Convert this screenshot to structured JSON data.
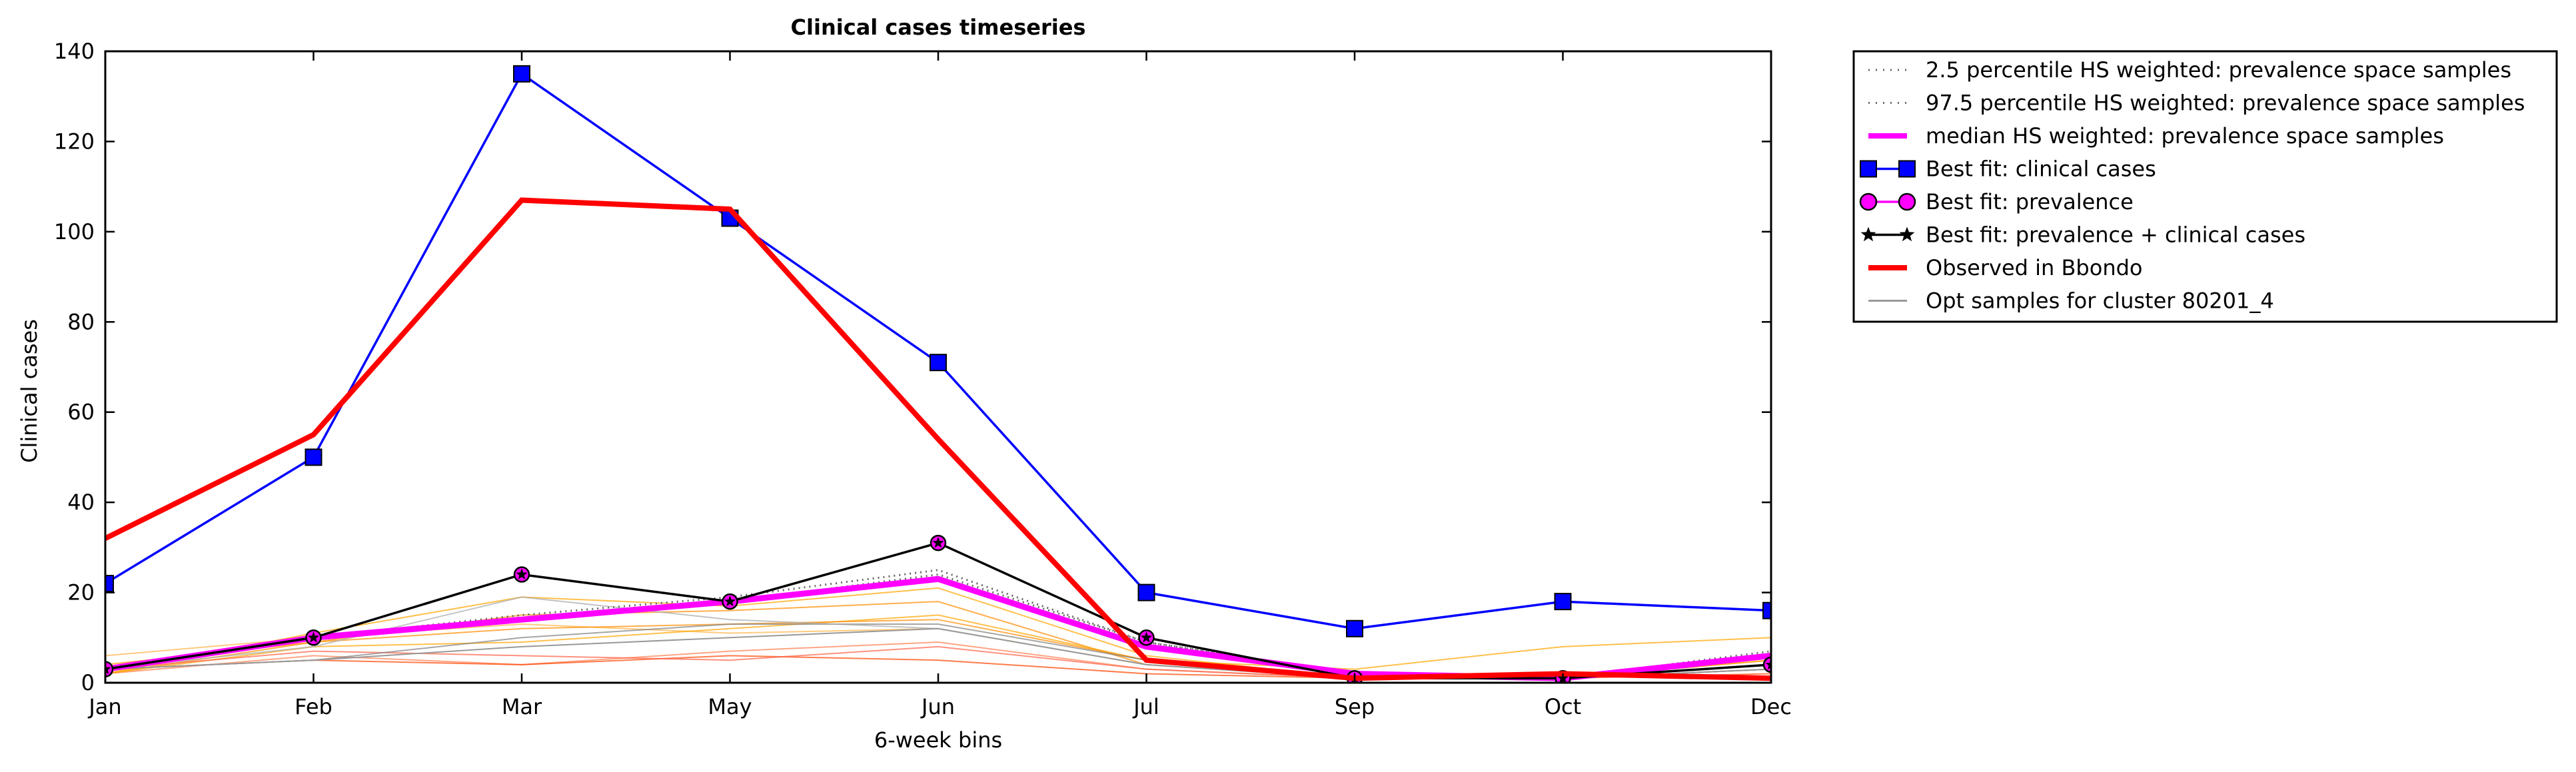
{
  "chart_data": {
    "type": "line",
    "title": "Clinical cases timeseries",
    "xlabel": "6-week bins",
    "ylabel": "Clinical cases",
    "categories": [
      "Jan",
      "Feb",
      "Mar",
      "May",
      "Jun",
      "Jul",
      "Sep",
      "Oct",
      "Dec"
    ],
    "ylim": [
      0,
      140
    ],
    "yticks": [
      0,
      20,
      40,
      60,
      80,
      100,
      120,
      140
    ],
    "grid": false,
    "legend_position": "outside-right",
    "colors": {
      "best_fit_clinical": "#0000ff",
      "best_fit_prevalence_fill": "#ff00ff",
      "best_fit_both": "#000000",
      "observed": "#ff0000",
      "median": "#ff00ff",
      "percentile": "#666666",
      "opt_samples": "#999999"
    },
    "legend": [
      {
        "label": "2.5 percentile HS weighted: prevalence space samples",
        "style": "dotted"
      },
      {
        "label": "97.5 percentile HS weighted: prevalence space samples",
        "style": "dotted"
      },
      {
        "label": "median HS weighted: prevalence space samples",
        "style": "magenta-thick"
      },
      {
        "label": "Best fit: clinical cases",
        "style": "blue-square"
      },
      {
        "label": "Best fit: prevalence",
        "style": "magenta-circle"
      },
      {
        "label": "Best fit: prevalence + clinical cases",
        "style": "black-star"
      },
      {
        "label": "Observed in Bbondo",
        "style": "red-thick"
      },
      {
        "label": "Opt samples for cluster 80201_4",
        "style": "gray-thin"
      }
    ],
    "series": [
      {
        "name": "Best fit: clinical cases",
        "values": [
          22,
          50,
          135,
          103,
          71,
          20,
          12,
          18,
          16
        ]
      },
      {
        "name": "Observed in Bbondo",
        "values": [
          32,
          55,
          107,
          105,
          54,
          5,
          1,
          2,
          1
        ]
      },
      {
        "name": "Best fit: prevalence",
        "values": [
          3,
          10,
          24,
          18,
          31,
          10,
          1,
          1,
          4
        ]
      },
      {
        "name": "Best fit: prevalence + clinical cases",
        "values": [
          3,
          10,
          24,
          18,
          31,
          10,
          1,
          1,
          4
        ]
      },
      {
        "name": "median HS weighted: prevalence space samples",
        "values": [
          3,
          10,
          14,
          18,
          23,
          8,
          2,
          1,
          6
        ]
      },
      {
        "name": "2.5 percentile HS weighted: prevalence space samples",
        "values": [
          3,
          10,
          14,
          18,
          24,
          9,
          2,
          1,
          6
        ]
      },
      {
        "name": "97.5 percentile HS weighted: prevalence space samples",
        "values": [
          3,
          10,
          15,
          19,
          25,
          9,
          2,
          1,
          7
        ]
      },
      {
        "name": "Opt samples for cluster 80201_4",
        "values": [
          3,
          5,
          8,
          10,
          12,
          4,
          1,
          1,
          3
        ]
      }
    ],
    "sample_lines": [
      {
        "color": "#ff8c00",
        "values": [
          2,
          9,
          15,
          16,
          18,
          4,
          1,
          1,
          5
        ]
      },
      {
        "color": "#ffa500",
        "values": [
          2,
          11,
          19,
          17,
          21,
          6,
          1,
          1,
          5
        ]
      },
      {
        "color": "#ffb347",
        "values": [
          6,
          10,
          13,
          11,
          12,
          4,
          1,
          1,
          3
        ]
      },
      {
        "color": "#ff7f50",
        "values": [
          2,
          6,
          4,
          7,
          9,
          3,
          1,
          1,
          4
        ]
      },
      {
        "color": "#ff4500",
        "values": [
          3,
          5,
          4,
          6,
          5,
          2,
          1,
          1,
          2
        ]
      },
      {
        "color": "#ffa500",
        "values": [
          2,
          8,
          9,
          12,
          15,
          5,
          3,
          8,
          10
        ]
      },
      {
        "color": "#ff6347",
        "values": [
          3,
          7,
          6,
          5,
          8,
          3,
          1,
          1,
          3
        ]
      },
      {
        "color": "#ff8c00",
        "values": [
          4,
          9,
          12,
          13,
          14,
          5,
          1,
          1,
          4
        ]
      },
      {
        "color": "#808080",
        "values": [
          3,
          5,
          10,
          13,
          13,
          5,
          1,
          1,
          3
        ]
      },
      {
        "color": "#a9a9a9",
        "values": [
          3,
          8,
          19,
          14,
          12,
          4,
          1,
          1,
          3
        ]
      }
    ]
  }
}
